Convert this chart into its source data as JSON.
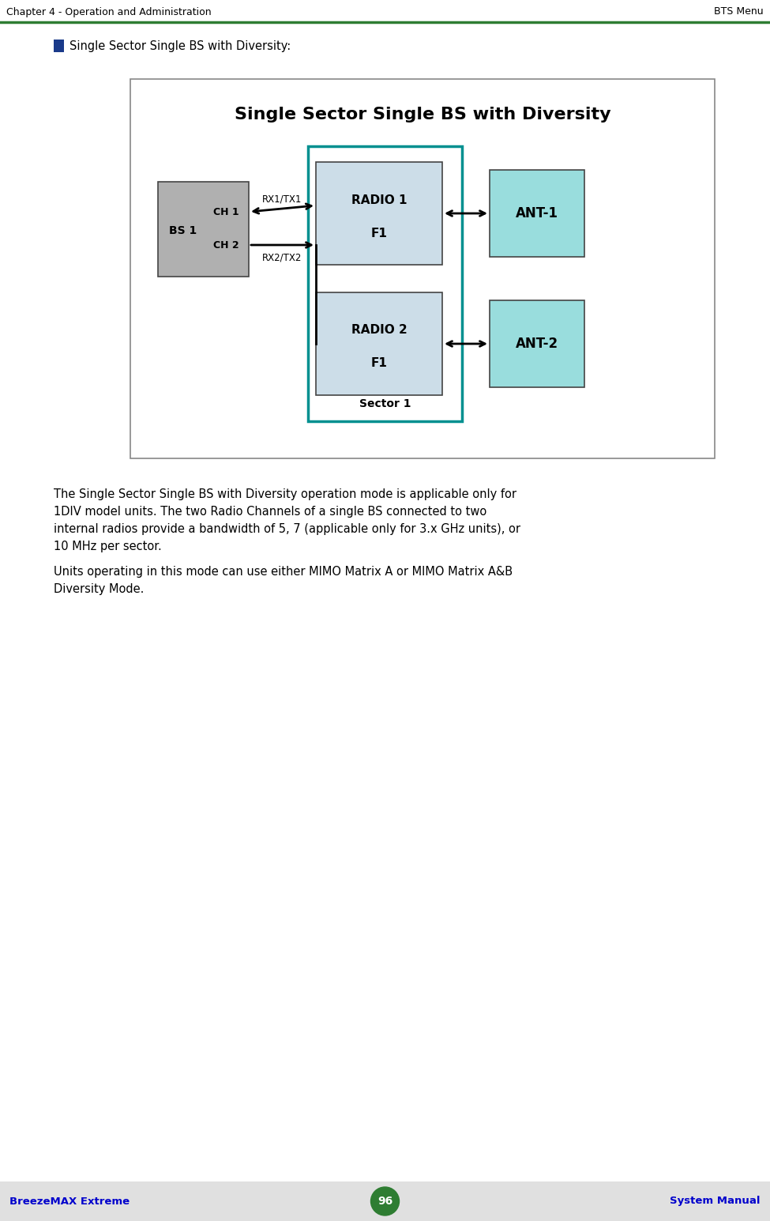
{
  "title": "Single Sector Single BS with Diversity",
  "header_left": "Chapter 4 - Operation and Administration",
  "header_right": "BTS Menu",
  "footer_left": "BreezeMAX Extreme",
  "footer_center": "96",
  "footer_right": "System Manual",
  "bullet_text": "Single Sector Single BS with Diversity:",
  "para1_line1": "The Single Sector Single BS with Diversity operation mode is applicable only for",
  "para1_line2": "1DIV model units. The two Radio Channels of a single BS connected to two",
  "para1_line3": "internal radios provide a bandwidth of 5, 7 (applicable only for 3.x GHz units), or",
  "para1_line4": "10 MHz per sector.",
  "para2_line1": "Units operating in this mode can use either MIMO Matrix A or MIMO Matrix A&B",
  "para2_line2": "Diversity Mode.",
  "header_line_color": "#2e7d32",
  "footer_bg_color": "#e0e0e0",
  "footer_text_color": "#0000cc",
  "bullet_color": "#1a3a8a",
  "diagram_border": "#888888",
  "bs_box_color": "#b0b0b0",
  "radio_box_color": "#ccdde8",
  "sector_border_color": "#009090",
  "ant_box_color": "#99dddd",
  "text_color": "#000000"
}
